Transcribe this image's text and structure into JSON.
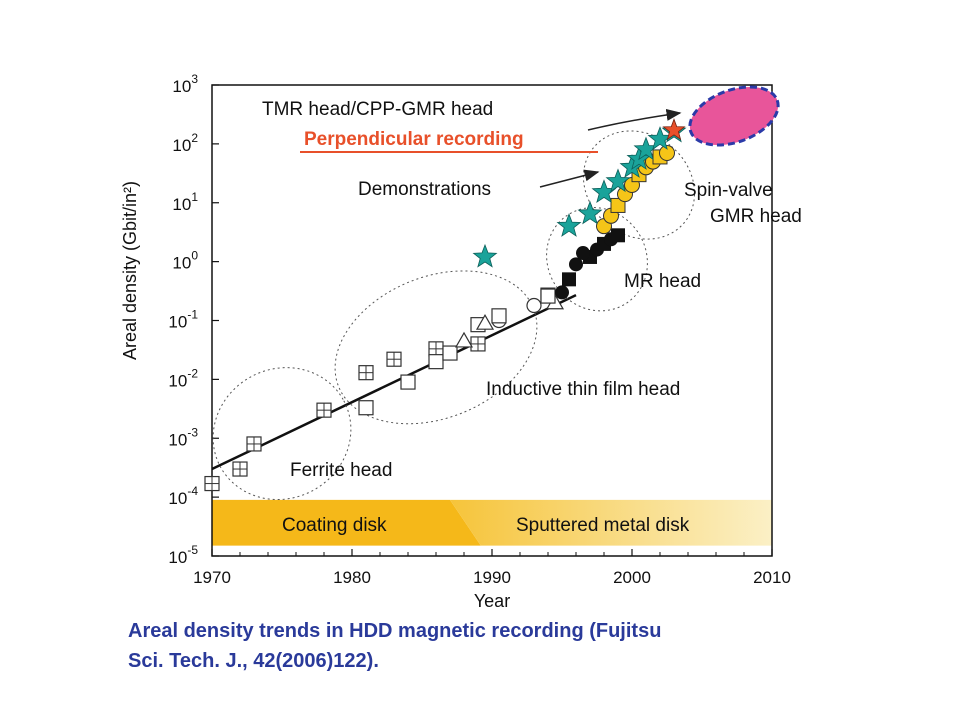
{
  "chart_data": {
    "type": "scatter",
    "xlabel": "Year",
    "ylabel": "Areal density (Gbit/in²)",
    "log_y": true,
    "xlim": [
      1970,
      2010
    ],
    "ylim": [
      1e-05,
      1000
    ],
    "x_ticks": [
      "1970",
      "1980",
      "1990",
      "2000",
      "2010"
    ],
    "y_ticks": [
      {
        "base": "10",
        "exp": "-5"
      },
      {
        "base": "10",
        "exp": "-4"
      },
      {
        "base": "10",
        "exp": "-3"
      },
      {
        "base": "10",
        "exp": "-2"
      },
      {
        "base": "10",
        "exp": "-1"
      },
      {
        "base": "10",
        "exp": "0"
      },
      {
        "base": "10",
        "exp": "1"
      },
      {
        "base": "10",
        "exp": "2"
      },
      {
        "base": "10",
        "exp": "3"
      }
    ],
    "trend_line": {
      "x": [
        1970,
        1996
      ],
      "y": [
        0.0003,
        0.27
      ]
    },
    "bands": [
      {
        "label": "Coating disk",
        "x": [
          1970,
          1987
        ],
        "y": [
          1.5e-05,
          9e-05
        ],
        "color": "#f5b819"
      },
      {
        "label": "Sputtered metal disk",
        "x": [
          1987,
          2010
        ],
        "y": [
          1.5e-05,
          9e-05
        ],
        "color": "#f2d36a"
      }
    ],
    "series": [
      {
        "marker": "boxed-plus",
        "points": [
          [
            1970,
            0.00017
          ],
          [
            1972,
            0.0003
          ],
          [
            1973,
            0.0008
          ],
          [
            1978,
            0.003
          ],
          [
            1981,
            0.013
          ],
          [
            1983,
            0.022
          ],
          [
            1986,
            0.033
          ],
          [
            1989,
            0.04
          ]
        ]
      },
      {
        "marker": "square-open",
        "points": [
          [
            1981,
            0.0033
          ],
          [
            1984,
            0.009
          ],
          [
            1986,
            0.02
          ],
          [
            1987,
            0.028
          ],
          [
            1989,
            0.085
          ],
          [
            1994,
            0.27
          ]
        ]
      },
      {
        "marker": "triangle-open",
        "points": [
          [
            1988,
            0.045
          ],
          [
            1989.5,
            0.09
          ],
          [
            1994.5,
            0.2
          ]
        ]
      },
      {
        "marker": "circle-open",
        "points": [
          [
            1990.5,
            0.1
          ],
          [
            1993,
            0.18
          ]
        ]
      },
      {
        "marker": "square-open",
        "points": [
          [
            1990.5,
            0.12
          ],
          [
            1994,
            0.26
          ]
        ]
      },
      {
        "marker": "black-filled",
        "points": [
          [
            1995,
            0.3
          ],
          [
            1995.5,
            0.5
          ],
          [
            1996,
            0.9
          ],
          [
            1997,
            1.2
          ],
          [
            1997.5,
            1.6
          ],
          [
            1998,
            2
          ],
          [
            1998.5,
            2.4
          ],
          [
            1999,
            2.8
          ],
          [
            1996.5,
            1.4
          ]
        ]
      },
      {
        "marker": "yellow-filled",
        "points": [
          [
            1998,
            4
          ],
          [
            1998.5,
            6
          ],
          [
            1999,
            9
          ],
          [
            1999.5,
            14
          ],
          [
            2000,
            20
          ],
          [
            2000.5,
            30
          ],
          [
            2001,
            40
          ],
          [
            2001.5,
            50
          ],
          [
            2002,
            60
          ],
          [
            2002.5,
            70
          ]
        ]
      },
      {
        "marker": "star-teal",
        "points": [
          [
            1989.5,
            1.2
          ],
          [
            1995.5,
            4
          ],
          [
            1997,
            6.5
          ],
          [
            1998,
            15
          ],
          [
            1999,
            23
          ],
          [
            2000,
            40
          ],
          [
            2000.5,
            55
          ],
          [
            2001,
            80
          ],
          [
            2002,
            120
          ],
          [
            2003,
            160
          ]
        ]
      },
      {
        "marker": "star-red",
        "points": [
          [
            2003,
            170
          ]
        ]
      }
    ],
    "ellipses": [
      {
        "label": "Ferrite head",
        "cx": 1975,
        "cy": 0.0012,
        "rx": 5,
        "ry": 1.1,
        "rotate": -28
      },
      {
        "label": "Inductive thin film head",
        "cx": 1986,
        "cy": 0.035,
        "rx": 7.5,
        "ry": 1.2,
        "rotate": -22
      },
      {
        "label": "MR head",
        "cx": 1997.5,
        "cy": 1.1,
        "rx": 3.5,
        "ry": 0.9,
        "rotate": -36
      },
      {
        "label": "Spin-valve GMR head",
        "cx": 2000.5,
        "cy": 20,
        "rx": 3.6,
        "ry": 1.0,
        "rotate": -50
      }
    ],
    "annotations": {
      "tmr": "TMR head/CPP-GMR head",
      "perpendicular": "Perpendicular recording",
      "demonstrations": "Demonstrations",
      "spin_valve_line1": "Spin-valve",
      "spin_valve_line2": "GMR head",
      "mr": "MR head",
      "inductive": "Inductive thin film head",
      "ferrite": "Ferrite head",
      "coating_disk": "Coating disk",
      "sputtered": "Sputtered metal disk"
    },
    "colors": {
      "star": "#1aa39a",
      "star_red": "#e8502a",
      "yellow": "#f5c518",
      "perpendicular_text": "#e8502a",
      "target_fill": "#e8559a",
      "target_edge": "#2b3aa8",
      "caption": "#2a3a9a"
    }
  },
  "caption": {
    "line1": "Areal density trends in HDD magnetic recording (Fujitsu",
    "line2": "Sci. Tech. J., 42(2006)122)."
  }
}
